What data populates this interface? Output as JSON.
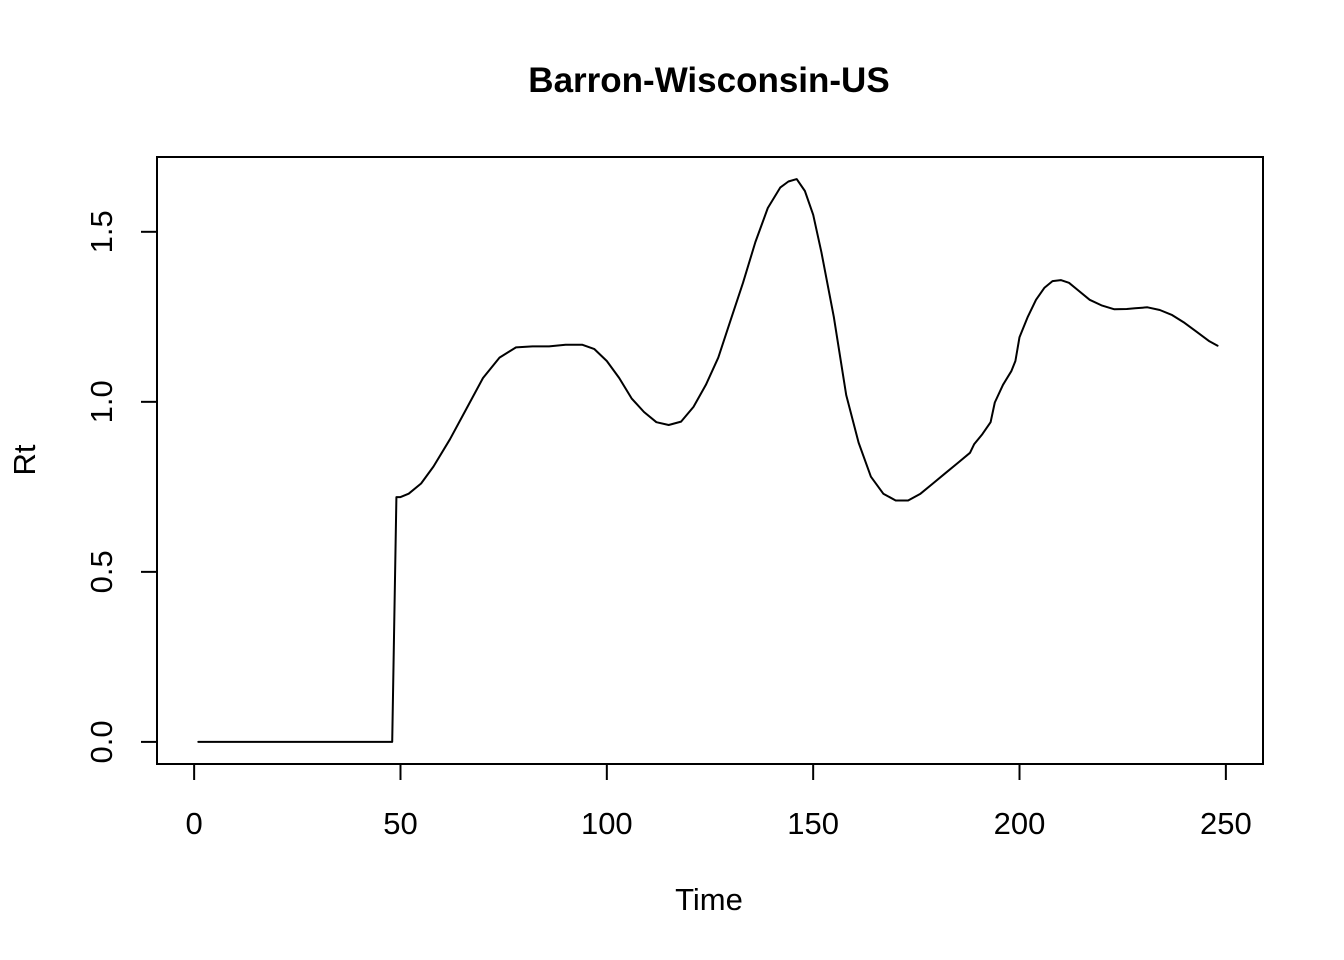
{
  "chart_data": {
    "type": "line",
    "title": "Barron-Wisconsin-US",
    "xlabel": "Time",
    "ylabel": "Rt",
    "xlim": [
      -9,
      259
    ],
    "ylim": [
      -0.065,
      1.72
    ],
    "xticks": [
      0,
      50,
      100,
      150,
      200,
      250
    ],
    "yticks": [
      0.0,
      0.5,
      1.0,
      1.5
    ],
    "xtick_labels": [
      "0",
      "50",
      "100",
      "150",
      "200",
      "250"
    ],
    "ytick_labels": [
      "0.0",
      "0.5",
      "1.0",
      "1.5"
    ],
    "grid": false,
    "legend": "none",
    "line_color": "#000000",
    "series": [
      {
        "x": [
          1,
          48,
          49,
          50,
          52,
          55,
          58,
          62,
          66,
          70,
          74,
          78,
          82,
          86,
          90,
          94,
          97,
          100,
          103,
          106,
          109,
          112,
          115,
          118,
          121,
          124,
          127,
          130,
          133,
          136,
          139,
          142,
          144,
          146,
          148,
          150,
          152,
          155,
          158,
          161,
          164,
          167,
          170,
          173,
          176,
          179,
          182,
          185,
          188,
          189,
          191,
          193,
          194,
          196,
          198,
          199,
          200,
          202,
          204,
          206,
          208,
          210,
          212,
          214,
          217,
          220,
          223,
          226,
          228,
          231,
          234,
          237,
          240,
          243,
          246,
          248
        ],
        "y": [
          0.0,
          0.0,
          0.72,
          0.72,
          0.73,
          0.76,
          0.81,
          0.89,
          0.98,
          1.07,
          1.13,
          1.16,
          1.163,
          1.163,
          1.168,
          1.168,
          1.155,
          1.12,
          1.07,
          1.01,
          0.97,
          0.94,
          0.932,
          0.942,
          0.985,
          1.05,
          1.13,
          1.24,
          1.35,
          1.47,
          1.57,
          1.63,
          1.648,
          1.655,
          1.62,
          1.55,
          1.44,
          1.25,
          1.02,
          0.88,
          0.78,
          0.73,
          0.71,
          0.71,
          0.73,
          0.76,
          0.79,
          0.82,
          0.85,
          0.875,
          0.905,
          0.94,
          0.998,
          1.05,
          1.09,
          1.12,
          1.19,
          1.25,
          1.3,
          1.335,
          1.355,
          1.358,
          1.35,
          1.33,
          1.3,
          1.283,
          1.272,
          1.273,
          1.275,
          1.278,
          1.27,
          1.255,
          1.232,
          1.205,
          1.178,
          1.165
        ]
      }
    ]
  }
}
